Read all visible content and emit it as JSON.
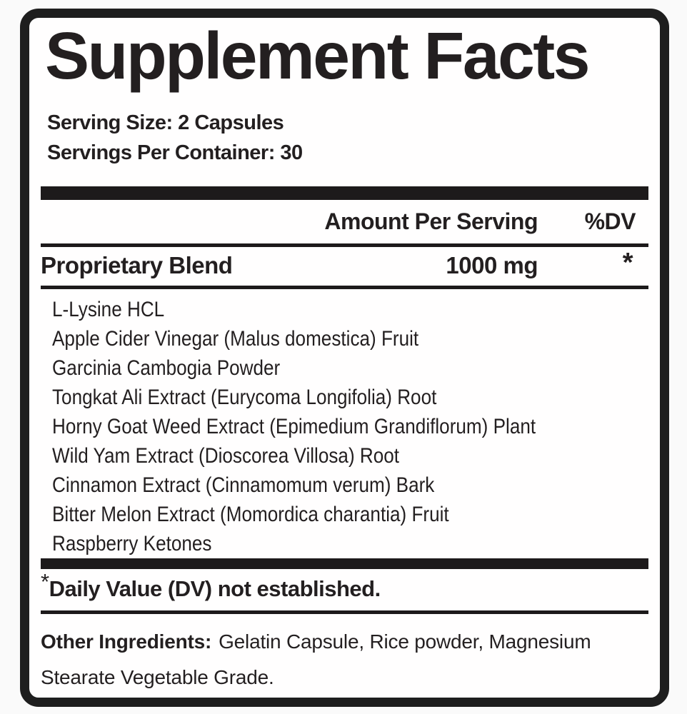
{
  "label": {
    "title": "Supplement Facts",
    "serving": {
      "size": "Serving Size: 2 Capsules",
      "per_container": "Servings Per Container: 30"
    },
    "columns": {
      "amount_header": "Amount Per Serving",
      "dv_header": "%DV"
    },
    "blend": {
      "name": "Proprietary Blend",
      "amount": "1000 mg",
      "dv": "*"
    },
    "ingredients": [
      "L-Lysine HCL",
      "Apple Cider Vinegar (Malus domestica) Fruit",
      "Garcinia Cambogia Powder",
      "Tongkat Ali Extract (Eurycoma Longifolia) Root",
      "Horny Goat Weed Extract (Epimedium Grandiflorum) Plant",
      "Wild Yam Extract (Dioscorea Villosa) Root",
      "Cinnamon Extract (Cinnamomum verum) Bark",
      "Bitter Melon Extract (Momordica charantia) Fruit",
      "Raspberry Ketones"
    ],
    "footnote": {
      "symbol": "*",
      "text": "Daily Value (DV) not established."
    },
    "other_ingredients": {
      "heading": "Other Ingredients:",
      "text": "Gelatin Capsule, Rice powder, Magnesium Stearate Vegetable Grade."
    },
    "colors": {
      "text": "#231f20",
      "rule": "#1d1a1b",
      "border": "#1e1e1e",
      "panel_background": "#ffffff",
      "page_background": "#fafafa"
    }
  }
}
